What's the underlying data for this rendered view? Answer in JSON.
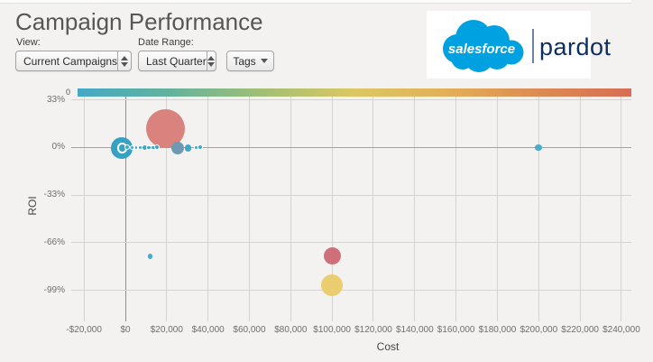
{
  "page_title": "Campaign Performance",
  "controls": {
    "view_label": "View:",
    "view_value": "Current Campaigns",
    "date_label": "Date Range:",
    "date_value": "Last Quarter",
    "tags_label": "Tags"
  },
  "brand": {
    "salesforce_text": "salesforce",
    "pardot_text": "pardot",
    "cloud_color": "#00a1e0",
    "pardot_color": "#0d2f64"
  },
  "chart_data": {
    "type": "scatter",
    "subtype": "bubble",
    "xlabel": "Cost",
    "ylabel": "ROI",
    "grid": true,
    "x_ticks": [
      "-$20,000",
      "$0",
      "$20,000",
      "$40,000",
      "$60,000",
      "$80,000",
      "$100,000",
      "$120,000",
      "$140,000",
      "$160,000",
      "$180,000",
      "$200,000",
      "$220,000",
      "$240,000"
    ],
    "x_tick_values": [
      -20000,
      0,
      20000,
      40000,
      60000,
      80000,
      100000,
      120000,
      140000,
      160000,
      180000,
      200000,
      220000,
      240000
    ],
    "y_ticks": [
      "33%",
      "0%",
      "-33%",
      "-66%",
      "-99%"
    ],
    "y_tick_values": [
      33,
      0,
      -33,
      -66,
      -99
    ],
    "x_range": [
      -20000,
      240000
    ],
    "y_range_pct": [
      -112,
      35
    ],
    "legend": {
      "position": "top",
      "min_label": "0",
      "gradient_stops": [
        "#44a8c6",
        "#63b29c",
        "#a2bf75",
        "#dcc763",
        "#e2b058",
        "#dd8a52",
        "#d76d55"
      ]
    },
    "bubbles": [
      {
        "cost": 19600,
        "roi_pct": 13.3,
        "r": 21.5,
        "color": "#d9827e",
        "ring": null
      },
      {
        "cost": -1750,
        "roi_pct": -0.4,
        "r": 11.8,
        "color": "#35a2c4",
        "ring": null
      },
      {
        "cost": -1530,
        "roi_pct": -0.4,
        "r": 5.6,
        "color": "#35a2c4",
        "ring": "thick"
      },
      {
        "cost": 1090,
        "roi_pct": -0.1,
        "r": 3.0,
        "color": "#3ea7c8",
        "ring": "thin"
      },
      {
        "cost": 3360,
        "roi_pct": -0.1,
        "r": 2.7,
        "color": "#3ea7c8",
        "ring": "thin"
      },
      {
        "cost": 5240,
        "roi_pct": -0.1,
        "r": 2.3,
        "color": "#3ea7c8",
        "ring": "thin"
      },
      {
        "cost": 7290,
        "roi_pct": -0.1,
        "r": 2.7,
        "color": "#3ea7c8",
        "ring": "thin"
      },
      {
        "cost": 9470,
        "roi_pct": -0.1,
        "r": 3.8,
        "color": "#3ea7c8",
        "ring": "thin"
      },
      {
        "cost": 11350,
        "roi_pct": -0.1,
        "r": 2.7,
        "color": "#3ea7c8",
        "ring": "thin"
      },
      {
        "cost": 13530,
        "roi_pct": -0.1,
        "r": 2.7,
        "color": "#3ea7c8",
        "ring": "thin"
      },
      {
        "cost": 15400,
        "roi_pct": -0.1,
        "r": 3.0,
        "color": "#3ea7c8",
        "ring": "thin"
      },
      {
        "cost": 25310,
        "roi_pct": -0.4,
        "r": 7.2,
        "color": "#6f99b2",
        "ring": null
      },
      {
        "cost": 30330,
        "roi_pct": -0.4,
        "r": 3.6,
        "color": "#3ea7c8",
        "ring": null
      },
      {
        "cost": 34340,
        "roi_pct": 0,
        "r": 2.4,
        "color": "#3ea7c8",
        "ring": "thin"
      },
      {
        "cost": 36090,
        "roi_pct": 0,
        "r": 3.2,
        "color": "#3ea7c8",
        "ring": "thin"
      },
      {
        "cost": 199900,
        "roi_pct": 0,
        "r": 3.6,
        "color": "#4aabcb",
        "ring": null
      },
      {
        "cost": 12090,
        "roi_pct": -75.4,
        "r": 2.8,
        "color": "#4aabcb",
        "ring": null
      },
      {
        "cost": 100070,
        "roi_pct": -75.4,
        "r": 9.5,
        "color": "#cd7077",
        "ring": null
      },
      {
        "cost": 99940,
        "roi_pct": -95.4,
        "r": 12.0,
        "color": "#e9cd6e",
        "ring": null
      }
    ]
  }
}
